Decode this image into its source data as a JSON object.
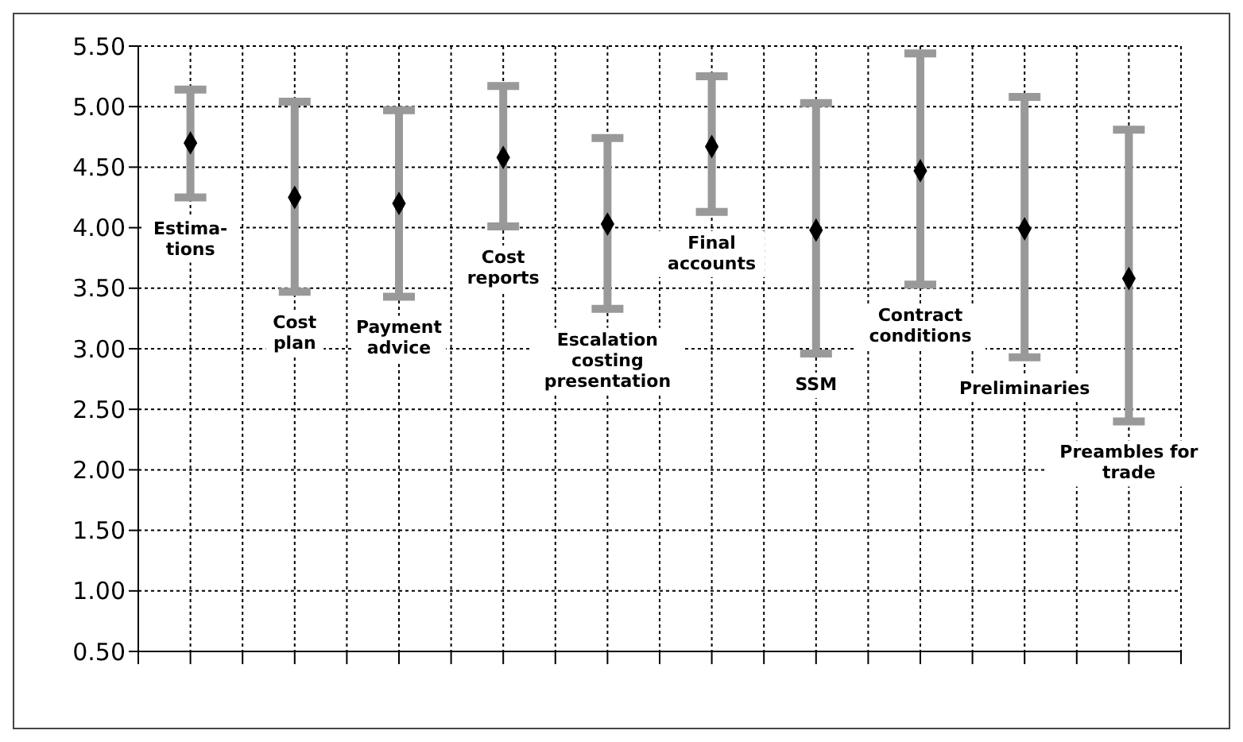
{
  "chart_data": {
    "type": "scatter",
    "categories": [
      "Estima-\ntions",
      "Cost\nplan",
      "Payment\nadvice",
      "Cost\nreports",
      "Escalation\ncosting\npresentation",
      "Final\naccounts",
      "SSM",
      "Contract\nconditions",
      "Preliminaries",
      "Preambles for\ntrade"
    ],
    "series": [
      {
        "color": "#000000",
        "values": [
          4.7,
          4.25,
          4.2,
          4.58,
          4.03,
          4.67,
          3.98,
          4.47,
          3.99,
          3.58
        ],
        "errors": [
          [
            4.25,
            5.14
          ],
          [
            3.47,
            5.04
          ],
          [
            3.43,
            4.97
          ],
          [
            4.01,
            5.17
          ],
          [
            3.33,
            4.74
          ],
          [
            4.13,
            5.25
          ],
          [
            2.96,
            5.03
          ],
          [
            3.53,
            5.44
          ],
          [
            2.93,
            5.08
          ],
          [
            2.4,
            4.81
          ]
        ]
      }
    ],
    "ylim": [
      0.5,
      5.5
    ],
    "yticks": [
      {
        "value": 0.5,
        "label": "0.50"
      },
      {
        "value": 1,
        "label": "1.00"
      },
      {
        "value": 1.5,
        "label": "1.50"
      },
      {
        "value": 2,
        "label": "2.00"
      },
      {
        "value": 2.5,
        "label": "2.50"
      },
      {
        "value": 3,
        "label": "3.00"
      },
      {
        "value": 3.5,
        "label": "3.50"
      },
      {
        "value": 4,
        "label": "4.00"
      },
      {
        "value": 4.5,
        "label": "4.50"
      },
      {
        "value": 5,
        "label": "5.00"
      },
      {
        "value": 5.5,
        "label": "5.50"
      }
    ],
    "grid": true,
    "marker": "diamond",
    "legend": false,
    "tick_labels": "y"
  }
}
